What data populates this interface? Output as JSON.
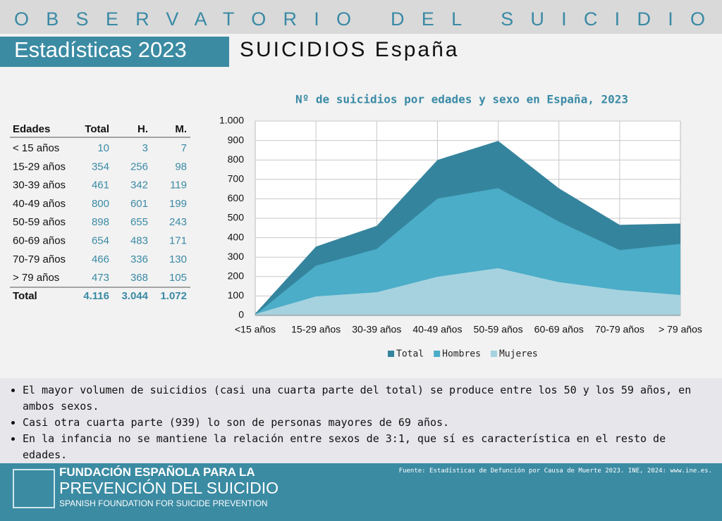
{
  "header": {
    "title": "OBSERVATORIO DEL SUICIDIO",
    "badge": "Estadísticas 2023",
    "subtitle": "SUICIDIOS España"
  },
  "table": {
    "header": [
      "Edades",
      "Total",
      "H.",
      "M."
    ],
    "rows": [
      [
        "< 15 años",
        10,
        3,
        7
      ],
      [
        "15-29 años",
        354,
        256,
        98
      ],
      [
        "30-39 años",
        461,
        342,
        119
      ],
      [
        "40-49 años",
        800,
        601,
        199
      ],
      [
        "50-59 años",
        898,
        655,
        243
      ],
      [
        "60-69 años",
        654,
        483,
        171
      ],
      [
        "70-79 años",
        466,
        336,
        130
      ],
      [
        "> 79 años",
        473,
        368,
        105
      ]
    ],
    "footer": [
      "Total",
      "4.116",
      "3.044",
      "1.072"
    ]
  },
  "chart_data": {
    "type": "area",
    "title": "Nº de suicidios por edades y sexo en España, 2023",
    "categories": [
      "<15 años",
      "15-29 años",
      "30-39 años",
      "40-49 años",
      "50-59 años",
      "60-69 años",
      "70-79 años",
      "> 79 años"
    ],
    "series": [
      {
        "name": "Total",
        "color": "#35849d",
        "values": [
          10,
          354,
          461,
          800,
          898,
          654,
          466,
          473
        ]
      },
      {
        "name": "Hombres",
        "color": "#4badc8",
        "values": [
          3,
          256,
          342,
          601,
          655,
          483,
          336,
          368
        ]
      },
      {
        "name": "Mujeres",
        "color": "#a6d2df",
        "values": [
          7,
          98,
          119,
          199,
          243,
          171,
          130,
          105
        ]
      }
    ],
    "ylim": [
      0,
      1000
    ],
    "yticks": [
      0,
      100,
      200,
      300,
      400,
      500,
      600,
      700,
      800,
      900,
      {
        "value": 1000,
        "label": "1.000"
      }
    ],
    "grid": true,
    "legend": "bottom"
  },
  "notes": [
    "El mayor volumen de suicidios (casi una cuarta parte del total) se produce entre los 50 y los 59 años, en ambos sexos.",
    "Casi otra cuarta parte (939) lo son de personas mayores de 69 años.",
    "En la infancia no se mantiene la relación entre sexos de 3:1, que sí es característica en el resto de edades."
  ],
  "footer": {
    "org_line1": "FUNDACIÓN ESPAÑOLA PARA LA",
    "org_line2": "PREVENCIÓN DEL SUICIDIO",
    "org_line3": "SPANISH FOUNDATION FOR SUICIDE PREVENTION",
    "source": "Fuente: Estadísticas de Defunción por Causa de Muerte 2023. INE, 2024: www.ine.es."
  }
}
